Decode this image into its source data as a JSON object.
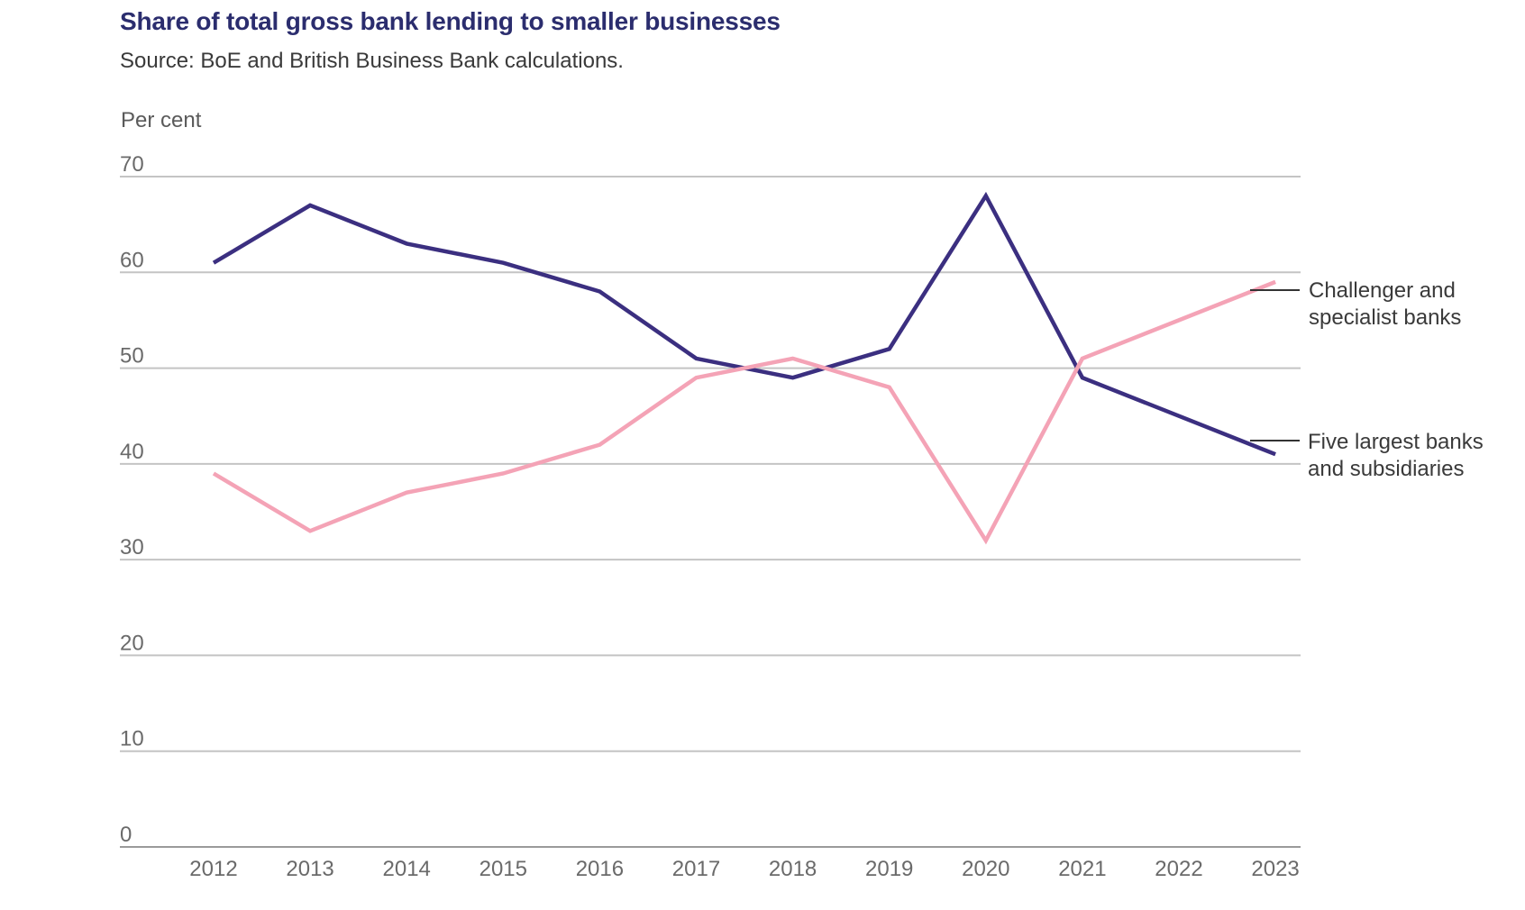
{
  "header": {
    "title": "Share of total gross bank lending to smaller businesses",
    "subtitle": "Source: BoE and British Business Bank calculations."
  },
  "chart_data": {
    "type": "line",
    "title": "Share of total gross bank lending to smaller businesses",
    "subtitle": "Source: BoE and British Business Bank calculations.",
    "ylabel": "Per cent",
    "xlabel": "",
    "ylim": [
      0,
      70
    ],
    "yticks": [
      0,
      10,
      20,
      30,
      40,
      50,
      60,
      70
    ],
    "categories": [
      "2012",
      "2013",
      "2014",
      "2015",
      "2016",
      "2017",
      "2018",
      "2019",
      "2020",
      "2021",
      "2022",
      "2023"
    ],
    "grid": true,
    "legend": "direct labels at right end",
    "series": [
      {
        "name": "Five largest banks and subsidiaries",
        "label_lines": [
          "Five largest banks",
          "and subsidiaries"
        ],
        "color": "#3b2f80",
        "values": [
          61,
          67,
          63,
          61,
          58,
          51,
          49,
          52,
          68,
          49,
          45,
          41
        ]
      },
      {
        "name": "Challenger and specialist banks",
        "label_lines": [
          "Challenger and",
          "specialist banks"
        ],
        "color": "#f4a3b6",
        "values": [
          39,
          33,
          37,
          39,
          42,
          49,
          51,
          48,
          32,
          51,
          55,
          59
        ]
      }
    ]
  }
}
